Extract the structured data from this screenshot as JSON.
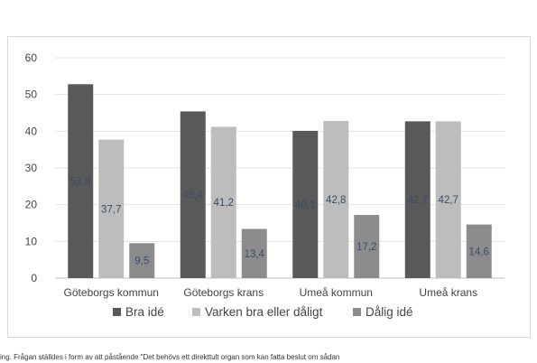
{
  "chart_data": {
    "type": "bar",
    "categories": [
      "Göteborgs kommun",
      "Göteborgs krans",
      "Umeå kommun",
      "Umeå krans"
    ],
    "series": [
      {
        "name": "Bra idé",
        "values": [
          52.8,
          45.4,
          40.1,
          42.7
        ],
        "color": "#595959"
      },
      {
        "name": "Varken bra eller dåligt",
        "values": [
          37.7,
          41.2,
          42.8,
          42.7
        ],
        "color": "#bdbdbd"
      },
      {
        "name": "Dålig idé",
        "values": [
          9.5,
          13.4,
          17.2,
          14.6
        ],
        "color": "#8c8c8c"
      }
    ],
    "data_labels": [
      [
        "52,8",
        "45,4",
        "40,1",
        "42,7"
      ],
      [
        "37,7",
        "41,2",
        "42,8",
        "42,7"
      ],
      [
        "9,5",
        "13,4",
        "17,2",
        "14,6"
      ]
    ],
    "y_ticks": [
      "0",
      "10",
      "20",
      "30",
      "40",
      "50",
      "60"
    ],
    "ylim": [
      0,
      60
    ],
    "grid": true,
    "legend_position": "bottom",
    "title": "",
    "xlabel": "",
    "ylabel": ""
  },
  "caption": "ing. Frågan ställdes i form av att påstående \"Det behövs ett direkttult organ som kan fatta beslut om sådan"
}
